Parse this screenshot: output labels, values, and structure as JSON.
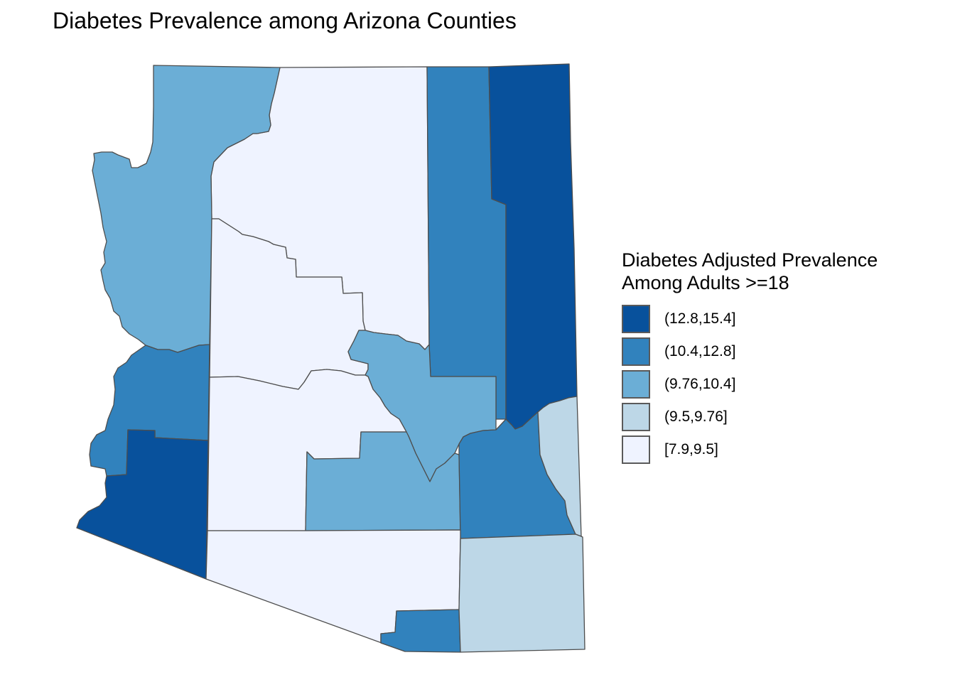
{
  "title": "Diabetes Prevalence among Arizona Counties",
  "legend": {
    "title_line1": "Diabetes Adjusted Prevalence",
    "title_line2": "Among Adults >=18",
    "items": [
      {
        "label": "(12.8,15.4]",
        "color": "#08519c"
      },
      {
        "label": "(10.4,12.8]",
        "color": "#3182bd"
      },
      {
        "label": "(9.76,10.4]",
        "color": "#6baed6"
      },
      {
        "label": "(9.5,9.76]",
        "color": "#bdd7e7"
      },
      {
        "label": "[7.9,9.5]",
        "color": "#eff3ff"
      }
    ]
  },
  "map_data": {
    "state": "Arizona",
    "counties_by_class": {
      "(12.8,15.4]": 2,
      "(10.4,12.8]": 4,
      "(9.76,10.4]": 3,
      "(9.5,9.76]": 2,
      "[7.9,9.5]": 4
    }
  }
}
